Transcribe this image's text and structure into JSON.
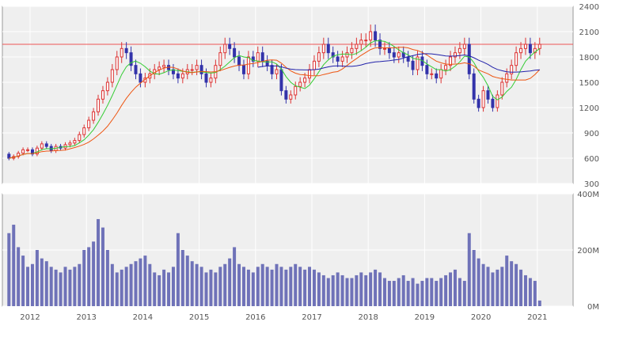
{
  "chart_data": {
    "type": "candlestick",
    "colors": {
      "background": "#efefef",
      "grid": "#ffffff",
      "frame": "#999999",
      "up_candle": "#dd3333",
      "down_candle": "#3333aa",
      "volume_bar": "#6f72b8",
      "ma_short": "#33cc33",
      "ma_mid": "#ee5511",
      "ma_long": "#2222aa",
      "ref_line": "#ee5555"
    },
    "x_labels": [
      "2012",
      "2013",
      "2014",
      "2015",
      "2016",
      "2017",
      "2018",
      "2019",
      "2020",
      "2021"
    ],
    "price_axis": {
      "labels": [
        "300",
        "600",
        "900",
        "1200",
        "1500",
        "1800",
        "2100",
        "2400"
      ],
      "ylim": [
        300,
        2400
      ]
    },
    "volume_axis": {
      "labels": [
        "0M",
        "200M",
        "400M"
      ],
      "ylim": [
        0,
        400
      ]
    },
    "ref_line_value": 1950,
    "start": {
      "year": 2011,
      "month": 8
    },
    "close": [
      600,
      620,
      660,
      700,
      700,
      650,
      720,
      770,
      740,
      690,
      740,
      720,
      760,
      780,
      810,
      880,
      960,
      1050,
      1150,
      1300,
      1400,
      1500,
      1650,
      1800,
      1900,
      1850,
      1700,
      1600,
      1500,
      1550,
      1600,
      1650,
      1680,
      1700,
      1650,
      1600,
      1550,
      1600,
      1650,
      1650,
      1700,
      1600,
      1500,
      1550,
      1700,
      1850,
      1950,
      1900,
      1800,
      1700,
      1600,
      1800,
      1750,
      1850,
      1750,
      1700,
      1600,
      1650,
      1400,
      1300,
      1350,
      1450,
      1500,
      1550,
      1650,
      1750,
      1850,
      1950,
      1850,
      1800,
      1750,
      1800,
      1850,
      1900,
      1950,
      2000,
      2000,
      2100,
      2000,
      1900,
      1900,
      1850,
      1800,
      1850,
      1800,
      1750,
      1650,
      1800,
      1700,
      1600,
      1600,
      1550,
      1650,
      1700,
      1800,
      1850,
      1900,
      1950,
      1600,
      1300,
      1200,
      1400,
      1300,
      1200,
      1350,
      1500,
      1600,
      1700,
      1850,
      1900,
      1950,
      1850,
      1900,
      1950
    ],
    "volume": [
      260,
      290,
      210,
      180,
      140,
      150,
      200,
      170,
      160,
      140,
      130,
      120,
      140,
      130,
      140,
      150,
      200,
      210,
      230,
      310,
      280,
      200,
      150,
      120,
      130,
      140,
      150,
      160,
      170,
      180,
      150,
      120,
      110,
      130,
      120,
      140,
      260,
      200,
      180,
      160,
      150,
      140,
      120,
      130,
      120,
      140,
      150,
      170,
      210,
      150,
      140,
      130,
      120,
      140,
      150,
      140,
      130,
      150,
      140,
      130,
      140,
      150,
      140,
      130,
      140,
      130,
      120,
      110,
      100,
      110,
      120,
      110,
      100,
      100,
      110,
      120,
      110,
      120,
      130,
      120,
      100,
      90,
      90,
      100,
      110,
      90,
      100,
      80,
      90,
      100,
      100,
      90,
      100,
      110,
      120,
      130,
      100,
      90,
      260,
      200,
      170,
      150,
      140,
      120,
      130,
      140,
      180,
      160,
      150,
      130,
      110,
      100,
      90,
      20
    ]
  }
}
